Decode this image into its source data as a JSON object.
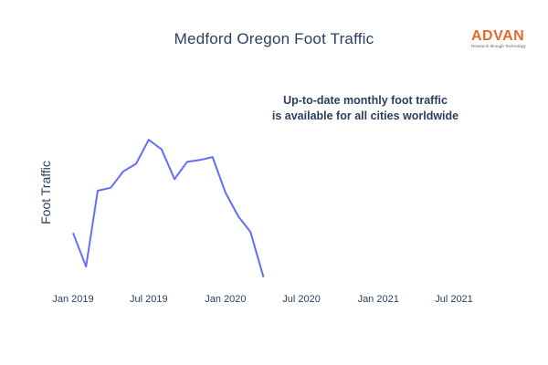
{
  "chart_data": {
    "type": "line",
    "title": "Medford Oregon Foot Traffic",
    "xlabel": "",
    "ylabel": "Foot Traffic",
    "x": [
      "2019-01",
      "2019-02",
      "2019-03",
      "2019-04",
      "2019-05",
      "2019-06",
      "2019-07",
      "2019-08",
      "2019-09",
      "2019-10",
      "2019-11",
      "2019-12",
      "2020-01",
      "2020-02",
      "2020-03",
      "2020-04"
    ],
    "series": [
      {
        "values": [
          50,
          15,
          94,
          97,
          114,
          122,
          147,
          137,
          106,
          124,
          126,
          129,
          92,
          67,
          51,
          4
        ],
        "color": "#636efa"
      }
    ],
    "x_ticks": [
      "Jan 2019",
      "Jul 2019",
      "Jan 2020",
      "Jul 2020",
      "Jan 2021",
      "Jul 2021"
    ],
    "y_ticks_shown": false,
    "grid": false,
    "annotation": [
      "Up-to-date monthly foot traffic",
      "is available for all cities worldwide"
    ]
  },
  "logo": {
    "wordmark": "ADVAN",
    "tagline": "Research through Technology"
  }
}
